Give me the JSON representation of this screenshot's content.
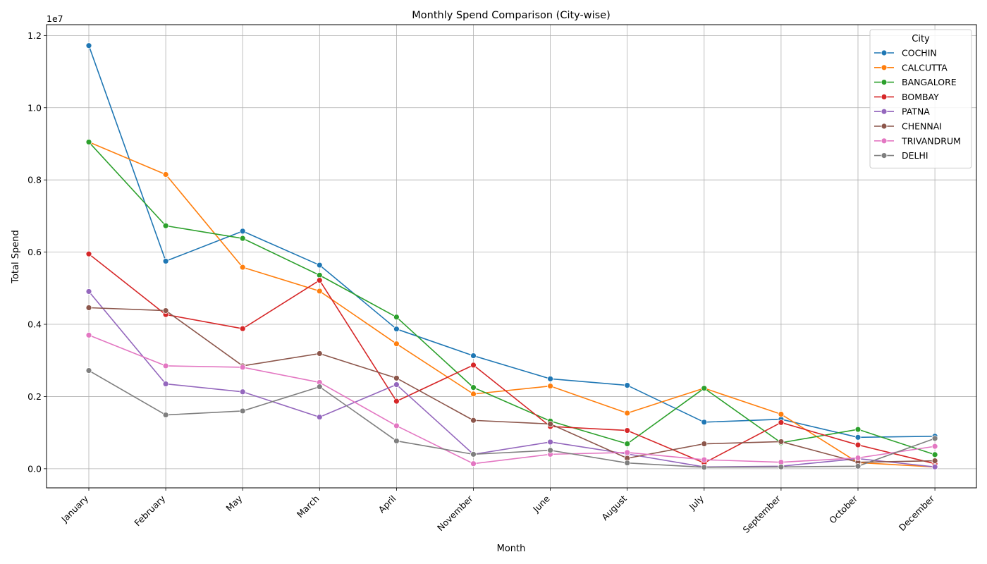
{
  "chart_data": {
    "type": "line",
    "title": "Monthly Spend Comparison (City-wise)",
    "xlabel": "Month",
    "ylabel": "Total Spend",
    "y_offset_label": "1e7",
    "ylim": [
      -530000,
      12300000
    ],
    "yticks": [
      0,
      2000000,
      4000000,
      6000000,
      8000000,
      10000000,
      12000000
    ],
    "ytick_labels": [
      "0.0",
      "0.2",
      "0.4",
      "0.6",
      "0.8",
      "1.0",
      "1.2"
    ],
    "grid": true,
    "categories": [
      "January",
      "February",
      "May",
      "March",
      "April",
      "November",
      "June",
      "August",
      "July",
      "September",
      "October",
      "December"
    ],
    "legend": {
      "title": "City",
      "position": "top-right"
    },
    "series": [
      {
        "name": "COCHIN",
        "color": "#1f77b4",
        "values": [
          11720000,
          5750000,
          6580000,
          5640000,
          3870000,
          3130000,
          2490000,
          2310000,
          1290000,
          1370000,
          870000,
          900000
        ]
      },
      {
        "name": "CALCUTTA",
        "color": "#ff7f0e",
        "values": [
          9050000,
          8150000,
          5580000,
          4920000,
          3460000,
          2070000,
          2290000,
          1540000,
          2230000,
          1510000,
          170000,
          50000
        ]
      },
      {
        "name": "BANGALORE",
        "color": "#2ca02c",
        "values": [
          9050000,
          6730000,
          6380000,
          5360000,
          4200000,
          2250000,
          1320000,
          690000,
          2230000,
          720000,
          1090000,
          390000
        ]
      },
      {
        "name": "BOMBAY",
        "color": "#d62728",
        "values": [
          5950000,
          4270000,
          3880000,
          5220000,
          1870000,
          2870000,
          1170000,
          1060000,
          160000,
          1280000,
          660000,
          140000
        ]
      },
      {
        "name": "PATNA",
        "color": "#9467bd",
        "values": [
          4910000,
          2350000,
          2130000,
          1430000,
          2330000,
          400000,
          740000,
          410000,
          50000,
          70000,
          280000,
          50000
        ]
      },
      {
        "name": "CHENNAI",
        "color": "#8c564b",
        "values": [
          4460000,
          4380000,
          2850000,
          3190000,
          2510000,
          1340000,
          1240000,
          290000,
          690000,
          750000,
          180000,
          220000
        ]
      },
      {
        "name": "TRIVANDRUM",
        "color": "#e377c2",
        "values": [
          3700000,
          2850000,
          2810000,
          2390000,
          1190000,
          140000,
          400000,
          450000,
          250000,
          180000,
          300000,
          620000
        ]
      },
      {
        "name": "DELHI",
        "color": "#7f7f7f",
        "values": [
          2720000,
          1490000,
          1600000,
          2270000,
          770000,
          400000,
          510000,
          160000,
          40000,
          50000,
          70000,
          840000
        ]
      }
    ]
  }
}
